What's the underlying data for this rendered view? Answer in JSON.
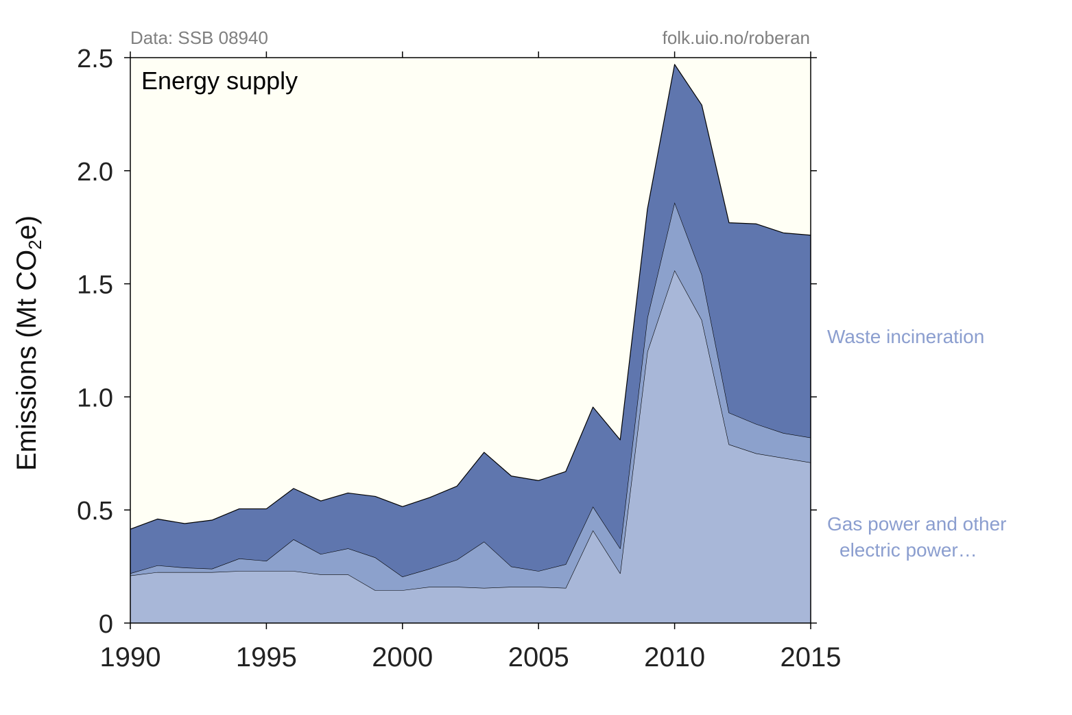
{
  "chart_data": {
    "type": "area",
    "stacked": true,
    "title": "Energy supply",
    "source_left": "Data: SSB 08940",
    "source_right": "folk.uio.no/roberan",
    "ylabel_parts": [
      "Emissions (Mt CO",
      "2",
      "e)"
    ],
    "xlabel": "",
    "xlim": [
      1990,
      2015
    ],
    "ylim": [
      0,
      2.5
    ],
    "xticks": [
      1990,
      1995,
      2000,
      2005,
      2010,
      2015
    ],
    "yticks": [
      0,
      0.5,
      1.0,
      1.5,
      2.0,
      2.5
    ],
    "ytick_labels": [
      "0",
      "0.5",
      "1.0",
      "1.5",
      "2.0",
      "2.5"
    ],
    "grid": false,
    "background_color": "#fffff5",
    "x": [
      1990,
      1991,
      1992,
      1993,
      1994,
      1995,
      1996,
      1997,
      1998,
      1999,
      2000,
      2001,
      2002,
      2003,
      2004,
      2005,
      2006,
      2007,
      2008,
      2009,
      2010,
      2011,
      2012,
      2013,
      2014,
      2015
    ],
    "series": [
      {
        "name": "Gas power and other electric power…",
        "label_lines": [
          "Gas power and other",
          "electric power…"
        ],
        "color": "#a8b7d8",
        "values": [
          0.21,
          0.225,
          0.225,
          0.225,
          0.23,
          0.23,
          0.23,
          0.215,
          0.215,
          0.145,
          0.145,
          0.16,
          0.16,
          0.155,
          0.16,
          0.16,
          0.155,
          0.41,
          0.22,
          1.2,
          1.56,
          1.34,
          0.79,
          0.75,
          0.73,
          0.71
        ]
      },
      {
        "name": "",
        "color": "#8ca1cc",
        "values": [
          0.01,
          0.03,
          0.02,
          0.015,
          0.055,
          0.045,
          0.14,
          0.09,
          0.115,
          0.145,
          0.06,
          0.08,
          0.12,
          0.205,
          0.09,
          0.07,
          0.105,
          0.105,
          0.11,
          0.15,
          0.3,
          0.2,
          0.14,
          0.13,
          0.11,
          0.11
        ]
      },
      {
        "name": "Waste incineration",
        "label_lines": [
          "Waste incineration"
        ],
        "color": "#5f76ae",
        "values": [
          0.195,
          0.205,
          0.195,
          0.215,
          0.22,
          0.23,
          0.225,
          0.235,
          0.245,
          0.27,
          0.31,
          0.315,
          0.325,
          0.395,
          0.4,
          0.4,
          0.41,
          0.44,
          0.48,
          0.48,
          0.61,
          0.75,
          0.84,
          0.885,
          0.885,
          0.895
        ]
      }
    ],
    "series_label_color": "#8b9ecf"
  }
}
